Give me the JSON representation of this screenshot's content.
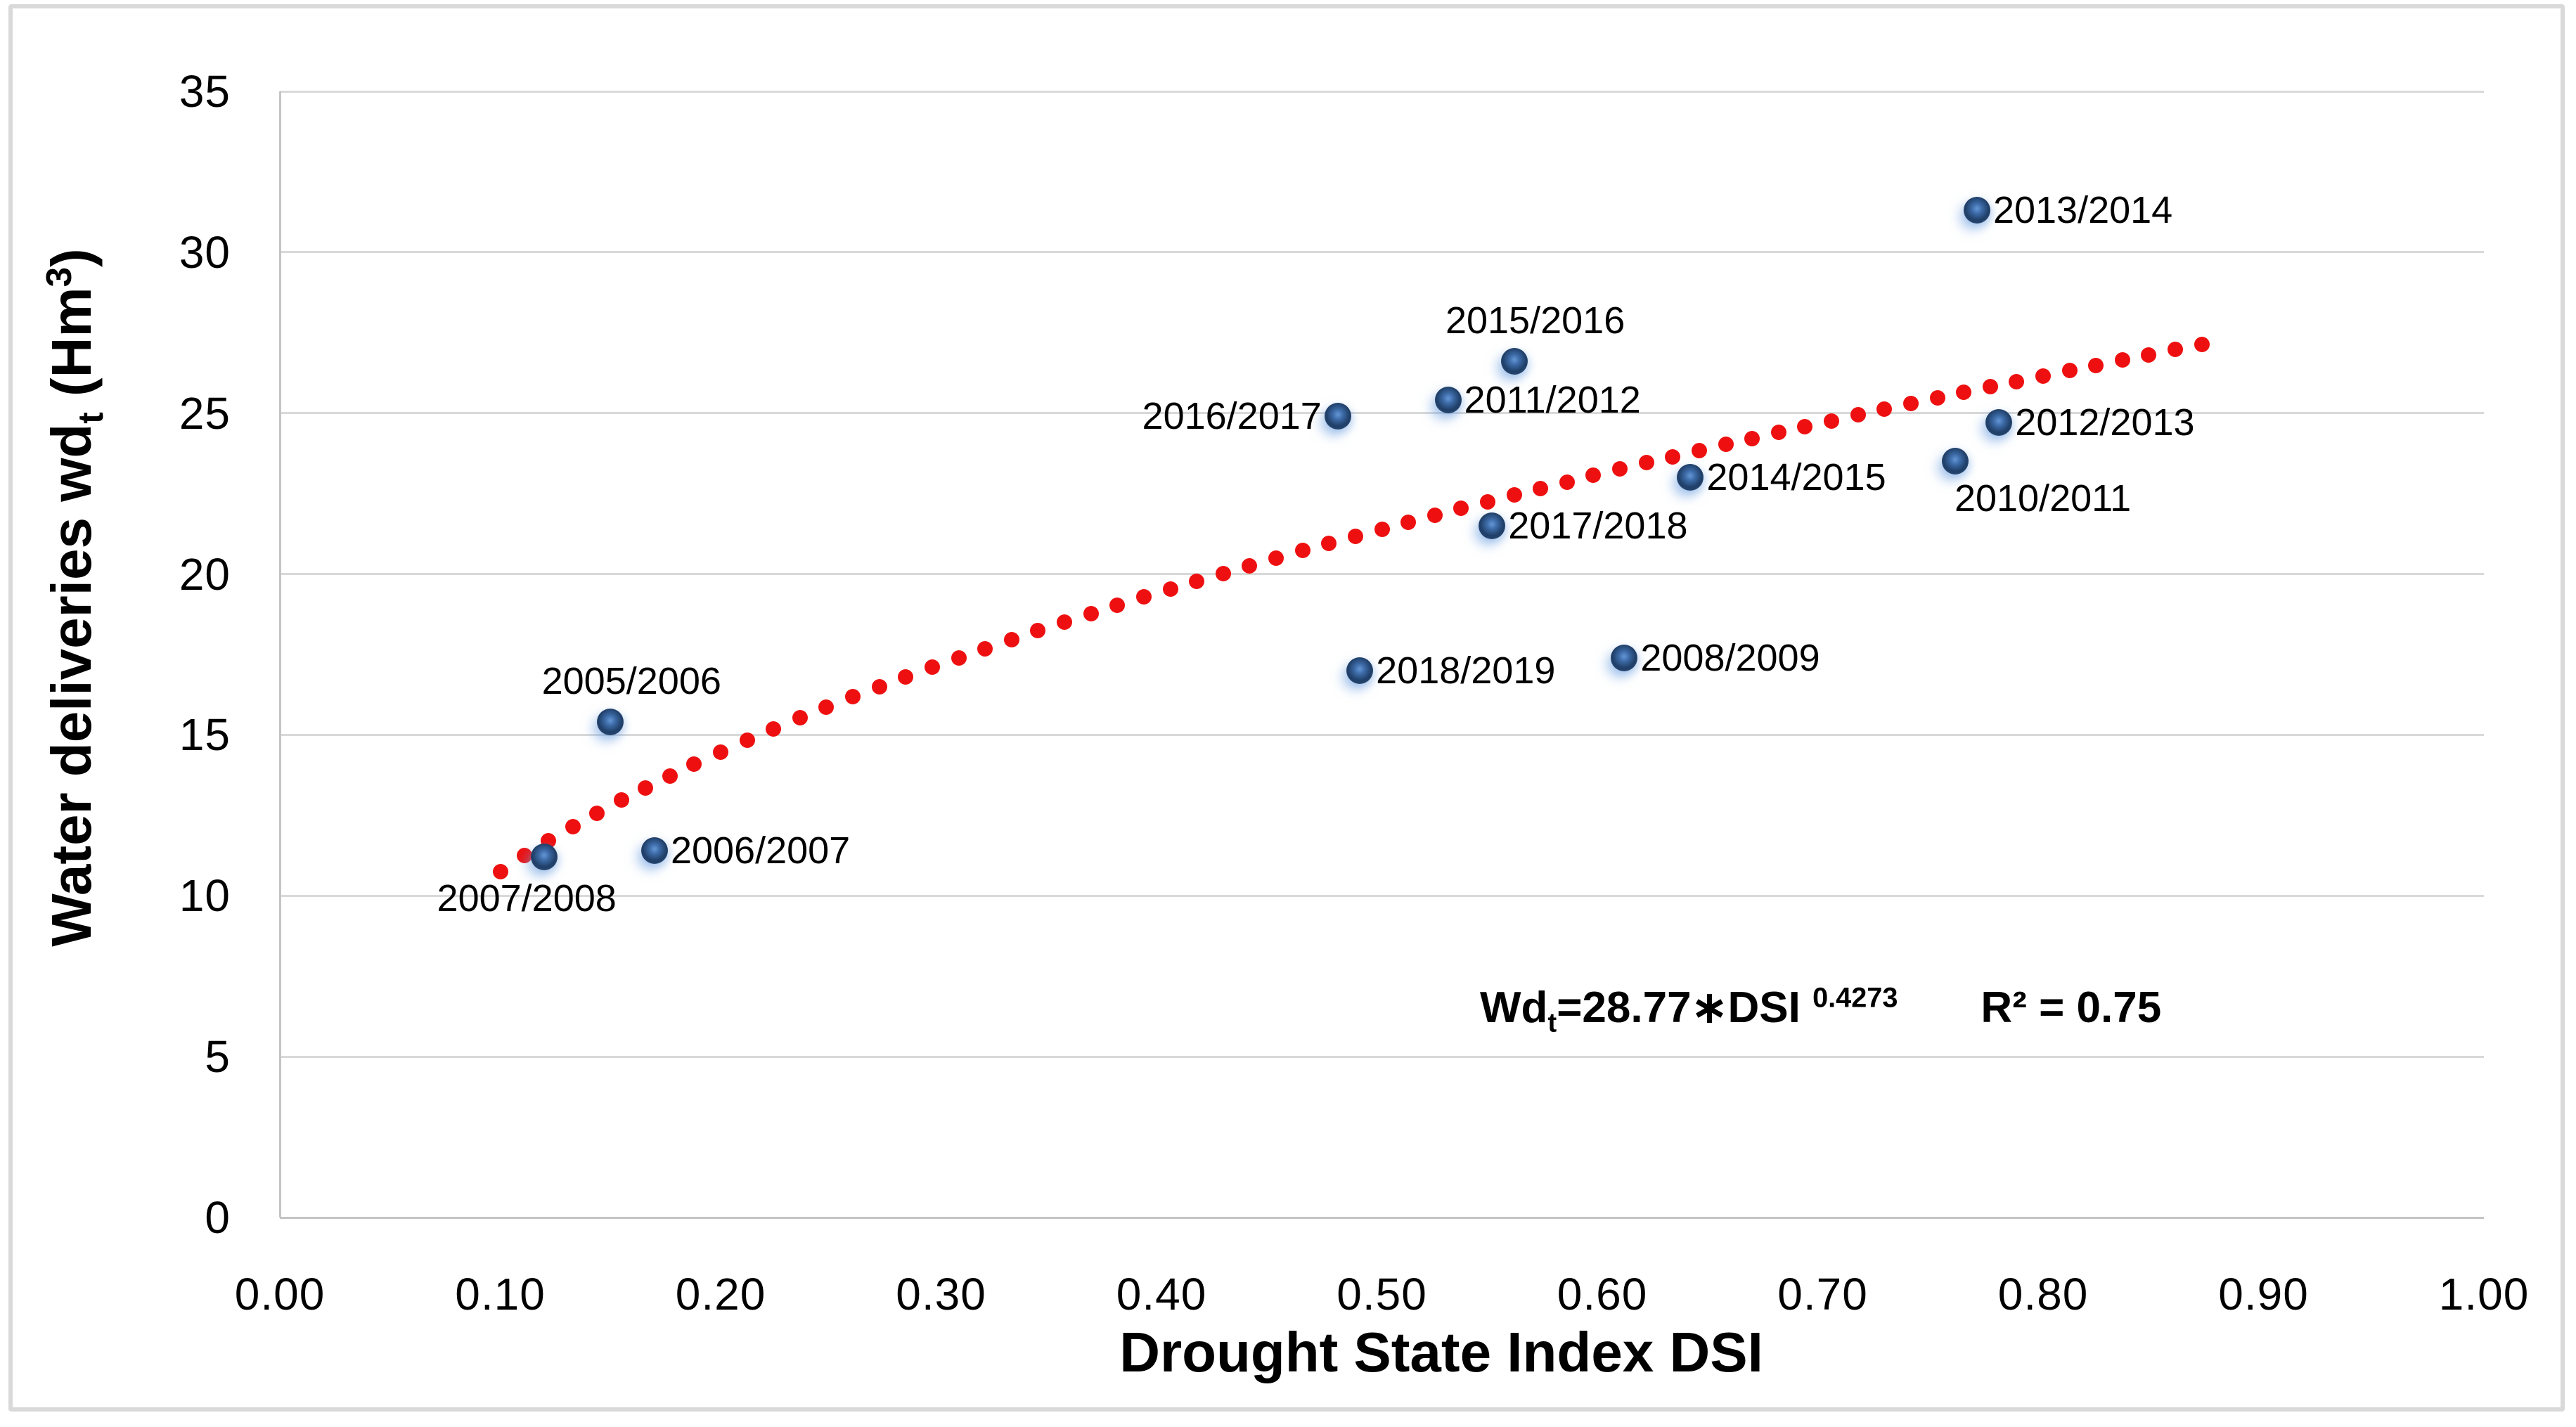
{
  "figure": {
    "background": "#ffffff",
    "frame_color": "#d9d9d9",
    "gridline_color": "#d9d9d9",
    "axis_line_color": "#c4c4c4",
    "text_color": "#000000"
  },
  "chart_data": {
    "type": "scatter",
    "title": "",
    "xlabel": "Drought State Index DSI",
    "ylabel_parts": {
      "main": "Water deliveries wd",
      "sub": "t",
      "unit_pre": " (Hm",
      "unit_sup": "3",
      "unit_post": ")"
    },
    "xlim": [
      0.0,
      1.0
    ],
    "ylim": [
      0,
      35
    ],
    "x_ticks": [
      "0.00",
      "0.10",
      "0.20",
      "0.30",
      "0.40",
      "0.50",
      "0.60",
      "0.70",
      "0.80",
      "0.90",
      "1.00"
    ],
    "y_ticks": [
      "0",
      "5",
      "10",
      "15",
      "20",
      "25",
      "30",
      "35"
    ],
    "grid": "horizontal",
    "legend": "none",
    "marker_core_color": "#4f83c8",
    "marker_ring_color": "#1e3c64",
    "points": [
      {
        "label": "2005/2006",
        "x": 0.15,
        "y": 15.4,
        "label_side": "above"
      },
      {
        "label": "2006/2007",
        "x": 0.17,
        "y": 11.4,
        "label_side": "right"
      },
      {
        "label": "2007/2008",
        "x": 0.12,
        "y": 11.2,
        "label_side": "below"
      },
      {
        "label": "2008/2009",
        "x": 0.61,
        "y": 17.4,
        "label_side": "right"
      },
      {
        "label": "2010/2011",
        "x": 0.76,
        "y": 23.5,
        "label_side": "below_right"
      },
      {
        "label": "2011/2012",
        "x": 0.53,
        "y": 25.4,
        "label_side": "right"
      },
      {
        "label": "2012/2013",
        "x": 0.78,
        "y": 24.7,
        "label_side": "right"
      },
      {
        "label": "2013/2014",
        "x": 0.77,
        "y": 31.3,
        "label_side": "right"
      },
      {
        "label": "2014/2015",
        "x": 0.64,
        "y": 23.0,
        "label_side": "right"
      },
      {
        "label": "2015/2016",
        "x": 0.56,
        "y": 26.6,
        "label_side": "above"
      },
      {
        "label": "2016/2017",
        "x": 0.48,
        "y": 24.9,
        "label_side": "left"
      },
      {
        "label": "2017/2018",
        "x": 0.55,
        "y": 21.5,
        "label_side": "right"
      },
      {
        "label": "2018/2019",
        "x": 0.49,
        "y": 17.0,
        "label_side": "right"
      }
    ],
    "trend": {
      "type": "power",
      "a": 28.77,
      "b": 0.4273,
      "x_start": 0.1,
      "x_end": 0.875,
      "style": "dotted",
      "color": "#ee1010",
      "equation_parts": {
        "lhs": "Wd",
        "lhs_sub": "t",
        "mid": "=28.77∗DSI ",
        "exponent": "0.4273",
        "r2": "R² = 0.75"
      }
    }
  }
}
